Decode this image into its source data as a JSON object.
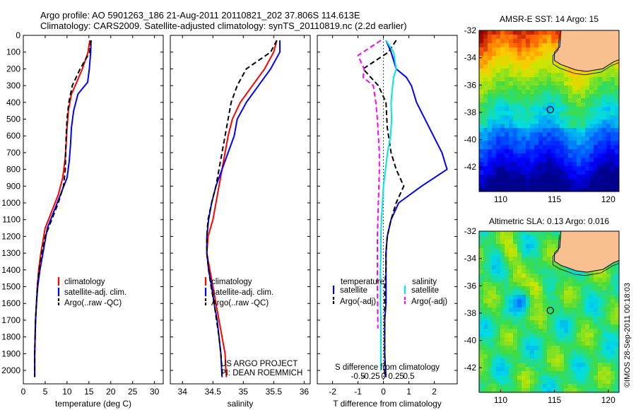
{
  "header": {
    "title_line1": "Argo profile: AO 5901263_186 21-Aug-2011 20110821_202 37.806S 114.613E",
    "title_line2": "Climatology: CARS2009. Satellite-adjusted climatology: synTS_20110819.nc (2.2d earlier)"
  },
  "colors": {
    "climatology": "#ff0000",
    "satellite": "#0000ff",
    "argo": "#000000",
    "salinity_satellite": "#00e5e5",
    "salinity_argo": "#ff00ff",
    "land": "#f7c08e"
  },
  "footer": {
    "project": "US ARGO PROJECT",
    "pi": "PI: DEAN ROEMMICH",
    "credit": "©IMOS 28-Sep-2011 00:18:03"
  },
  "chart_data": [
    {
      "type": "line",
      "id": "temperature",
      "xlabel": "temperature (deg C)",
      "ylabel": "",
      "xlim": [
        0,
        32
      ],
      "ylim": [
        2080,
        0
      ],
      "y_reversed": true,
      "xticks": [
        0,
        5,
        10,
        15,
        20,
        25,
        30
      ],
      "yticks": [
        0,
        100,
        200,
        300,
        400,
        500,
        600,
        700,
        800,
        900,
        1000,
        1100,
        1200,
        1300,
        1400,
        1500,
        1600,
        1700,
        1800,
        1900,
        2000
      ],
      "legend": [
        "climatology",
        "satellite-adj. clim.",
        "Argo(..raw -QC)"
      ],
      "legend_position": "lower-middle",
      "series": [
        {
          "name": "climatology",
          "color": "#ff0000",
          "style": "solid",
          "x": [
            15.2,
            14.8,
            13.5,
            12.2,
            11.0,
            10.3,
            10.0,
            9.8,
            9.5,
            9.0,
            8.0,
            6.5,
            5.0,
            4.0,
            3.5,
            3.2,
            3.0,
            2.8,
            2.7,
            2.6,
            2.6
          ],
          "y": [
            30,
            100,
            200,
            280,
            350,
            450,
            550,
            650,
            750,
            850,
            950,
            1050,
            1150,
            1300,
            1400,
            1500,
            1600,
            1700,
            1800,
            1900,
            2040
          ]
        },
        {
          "name": "satellite-adj. clim.",
          "color": "#0000ff",
          "style": "solid",
          "x": [
            15.5,
            15.4,
            15.1,
            14.7,
            12.5,
            11.5,
            11.0,
            10.8,
            10.5,
            10.0,
            8.5,
            7.0,
            5.5,
            4.5,
            3.8,
            3.3,
            3.0,
            2.8,
            2.7,
            2.6,
            2.6
          ],
          "y": [
            30,
            100,
            200,
            280,
            350,
            450,
            550,
            650,
            750,
            850,
            950,
            1050,
            1150,
            1300,
            1400,
            1500,
            1600,
            1700,
            1800,
            1900,
            2040
          ]
        },
        {
          "name": "Argo(..raw -QC)",
          "color": "#000000",
          "style": "dashed",
          "x": [
            15.4,
            15.2,
            13.0,
            11.2,
            10.4,
            10.0,
            9.8,
            9.7,
            9.6,
            9.2,
            8.0,
            6.5,
            5.0,
            4.2,
            3.6,
            3.2,
            3.0,
            2.8,
            2.7,
            2.6,
            2.6
          ],
          "y": [
            30,
            100,
            200,
            300,
            400,
            500,
            600,
            700,
            800,
            900,
            1000,
            1100,
            1200,
            1300,
            1400,
            1500,
            1600,
            1700,
            1800,
            1900,
            2040
          ]
        }
      ]
    },
    {
      "type": "line",
      "id": "salinity",
      "xlabel": "salinity",
      "ylabel": "",
      "xlim": [
        33.8,
        36.1
      ],
      "ylim": [
        2080,
        0
      ],
      "y_reversed": true,
      "xticks": [
        34,
        34.5,
        35,
        35.5,
        36
      ],
      "legend": [
        "climatology",
        "satellite-adj. clim.",
        "Argo(..raw -QC)"
      ],
      "legend_position": "lower-middle",
      "series": [
        {
          "name": "climatology",
          "color": "#ff0000",
          "style": "solid",
          "x": [
            35.55,
            35.5,
            35.35,
            35.15,
            34.95,
            34.82,
            34.75,
            34.7,
            34.65,
            34.6,
            34.55,
            34.5,
            34.42,
            34.4,
            34.45,
            34.5,
            34.55,
            34.6,
            34.65,
            34.7,
            34.72
          ],
          "y": [
            30,
            100,
            200,
            300,
            400,
            500,
            600,
            700,
            800,
            900,
            1000,
            1100,
            1200,
            1300,
            1400,
            1500,
            1600,
            1700,
            1800,
            1900,
            2040
          ]
        },
        {
          "name": "satellite-adj. clim.",
          "color": "#0000ff",
          "style": "solid",
          "x": [
            35.6,
            35.6,
            35.45,
            35.25,
            35.05,
            34.9,
            34.85,
            34.75,
            34.65,
            34.55,
            34.48,
            34.43,
            34.4,
            34.4,
            34.43,
            34.48,
            34.52,
            34.57,
            34.6,
            34.63,
            34.65
          ],
          "y": [
            30,
            100,
            200,
            300,
            400,
            500,
            600,
            700,
            800,
            900,
            1000,
            1100,
            1200,
            1300,
            1400,
            1500,
            1600,
            1700,
            1800,
            1900,
            2040
          ]
        },
        {
          "name": "Argo(..raw -QC)",
          "color": "#000000",
          "style": "dashed",
          "x": [
            35.55,
            35.45,
            35.05,
            34.9,
            34.8,
            34.75,
            34.7,
            34.65,
            34.6,
            34.55,
            34.48,
            34.42,
            34.4,
            34.4,
            34.43,
            34.47,
            34.52,
            34.56,
            34.6,
            34.63,
            34.66
          ],
          "y": [
            30,
            100,
            200,
            300,
            400,
            500,
            600,
            700,
            800,
            900,
            1000,
            1100,
            1200,
            1300,
            1400,
            1500,
            1600,
            1700,
            1800,
            1900,
            2040
          ]
        }
      ]
    },
    {
      "type": "line",
      "id": "difference",
      "xlabel": "T difference from climatology",
      "xlabel_top": "S difference from climatology",
      "xlim": [
        -2.6,
        2.9
      ],
      "ylim": [
        2080,
        0
      ],
      "y_reversed": true,
      "xticks": [
        -2,
        -1,
        0,
        1,
        2
      ],
      "secondary_xticks": [
        {
          "value": -0.5,
          "label": "-0.5"
        },
        {
          "value": -0.25,
          "label": "-0.25"
        },
        {
          "value": 0,
          "label": "0"
        },
        {
          "value": 0.25,
          "label": "0.25"
        },
        {
          "value": 0.5,
          "label": "0.5"
        }
      ],
      "legend_titles": [
        "temperature",
        "salinity"
      ],
      "legend": [
        "satellite",
        "Argo(-adj)",
        "satellite",
        "Argo(-adj)"
      ],
      "legend_position": "lower-middle",
      "series": [
        {
          "name": "satellite",
          "group": "temperature",
          "color": "#0000ff",
          "style": "solid",
          "x": [
            0.1,
            0.3,
            0.5,
            0.9,
            1.1,
            1.3,
            1.8,
            2.3,
            2.5,
            1.5,
            0.6,
            0.3,
            0.15,
            0.1,
            0.1,
            0.1,
            0.1,
            0.05,
            0.05,
            0.05,
            0.1
          ],
          "y": [
            30,
            100,
            200,
            250,
            300,
            400,
            550,
            700,
            800,
            900,
            1000,
            1100,
            1200,
            1300,
            1400,
            1500,
            1600,
            1700,
            1800,
            1900,
            2040
          ]
        },
        {
          "name": "Argo(-adj)",
          "group": "temperature",
          "color": "#000000",
          "style": "dashed",
          "x": [
            0.5,
            0.2,
            -0.8,
            -0.5,
            -0.2,
            0.1,
            0.15,
            0.3,
            0.5,
            0.8,
            0.5,
            0.3,
            0.15,
            0.1,
            0.1,
            0.05,
            0.05,
            0.05,
            0.05,
            0.05,
            0.05
          ],
          "y": [
            30,
            100,
            200,
            250,
            300,
            400,
            550,
            700,
            800,
            900,
            1000,
            1100,
            1200,
            1300,
            1400,
            1500,
            1600,
            1700,
            1800,
            1900,
            2040
          ]
        },
        {
          "name": "satellite",
          "group": "salinity",
          "color": "#00e5e5",
          "style": "solid",
          "x": [
            0.05,
            0.2,
            0.25,
            0.2,
            0.18,
            0.15,
            0.16,
            0.14,
            0.08,
            0.04,
            0.0,
            -0.02,
            -0.04,
            -0.05,
            -0.05,
            -0.06,
            -0.06,
            -0.06,
            -0.05,
            -0.05,
            -0.05
          ],
          "y": [
            30,
            100,
            200,
            250,
            300,
            400,
            500,
            600,
            700,
            800,
            900,
            1000,
            1100,
            1200,
            1300,
            1400,
            1500,
            1600,
            1700,
            1800,
            2000
          ]
        },
        {
          "name": "Argo(-adj)",
          "group": "salinity",
          "color": "#ff00ff",
          "style": "dashed",
          "x": [
            -0.05,
            -0.5,
            -0.38,
            -0.4,
            -0.2,
            -0.15,
            -0.12,
            -0.1,
            -0.08,
            -0.08,
            -0.09,
            -0.1,
            -0.11,
            -0.12,
            -0.12,
            -0.12,
            -0.12,
            -0.11
          ],
          "y": [
            30,
            120,
            200,
            250,
            300,
            400,
            500,
            600,
            700,
            800,
            900,
            1000,
            1100,
            1200,
            1300,
            1400,
            1500,
            1750
          ]
        }
      ]
    },
    {
      "type": "heatmap",
      "id": "sst_map",
      "title": "AMSR-E SST: 14 Argo: 15",
      "xlim": [
        108,
        121
      ],
      "ylim": [
        -43.8,
        -32
      ],
      "xticks": [
        110,
        115,
        120
      ],
      "yticks": [
        -32,
        -34,
        -36,
        -38,
        -40,
        -42
      ],
      "float_position": {
        "lon": 114.613,
        "lat": -37.806
      }
    },
    {
      "type": "heatmap",
      "id": "sla_map",
      "title": "Altimetric SLA: 0.13 Argo: 0.016",
      "xlim": [
        108,
        121
      ],
      "ylim": [
        -43.8,
        -32
      ],
      "xticks": [
        110,
        115,
        120
      ],
      "yticks": [
        -32,
        -34,
        -36,
        -38,
        -40,
        -42
      ],
      "float_position": {
        "lon": 114.613,
        "lat": -37.806
      }
    }
  ]
}
